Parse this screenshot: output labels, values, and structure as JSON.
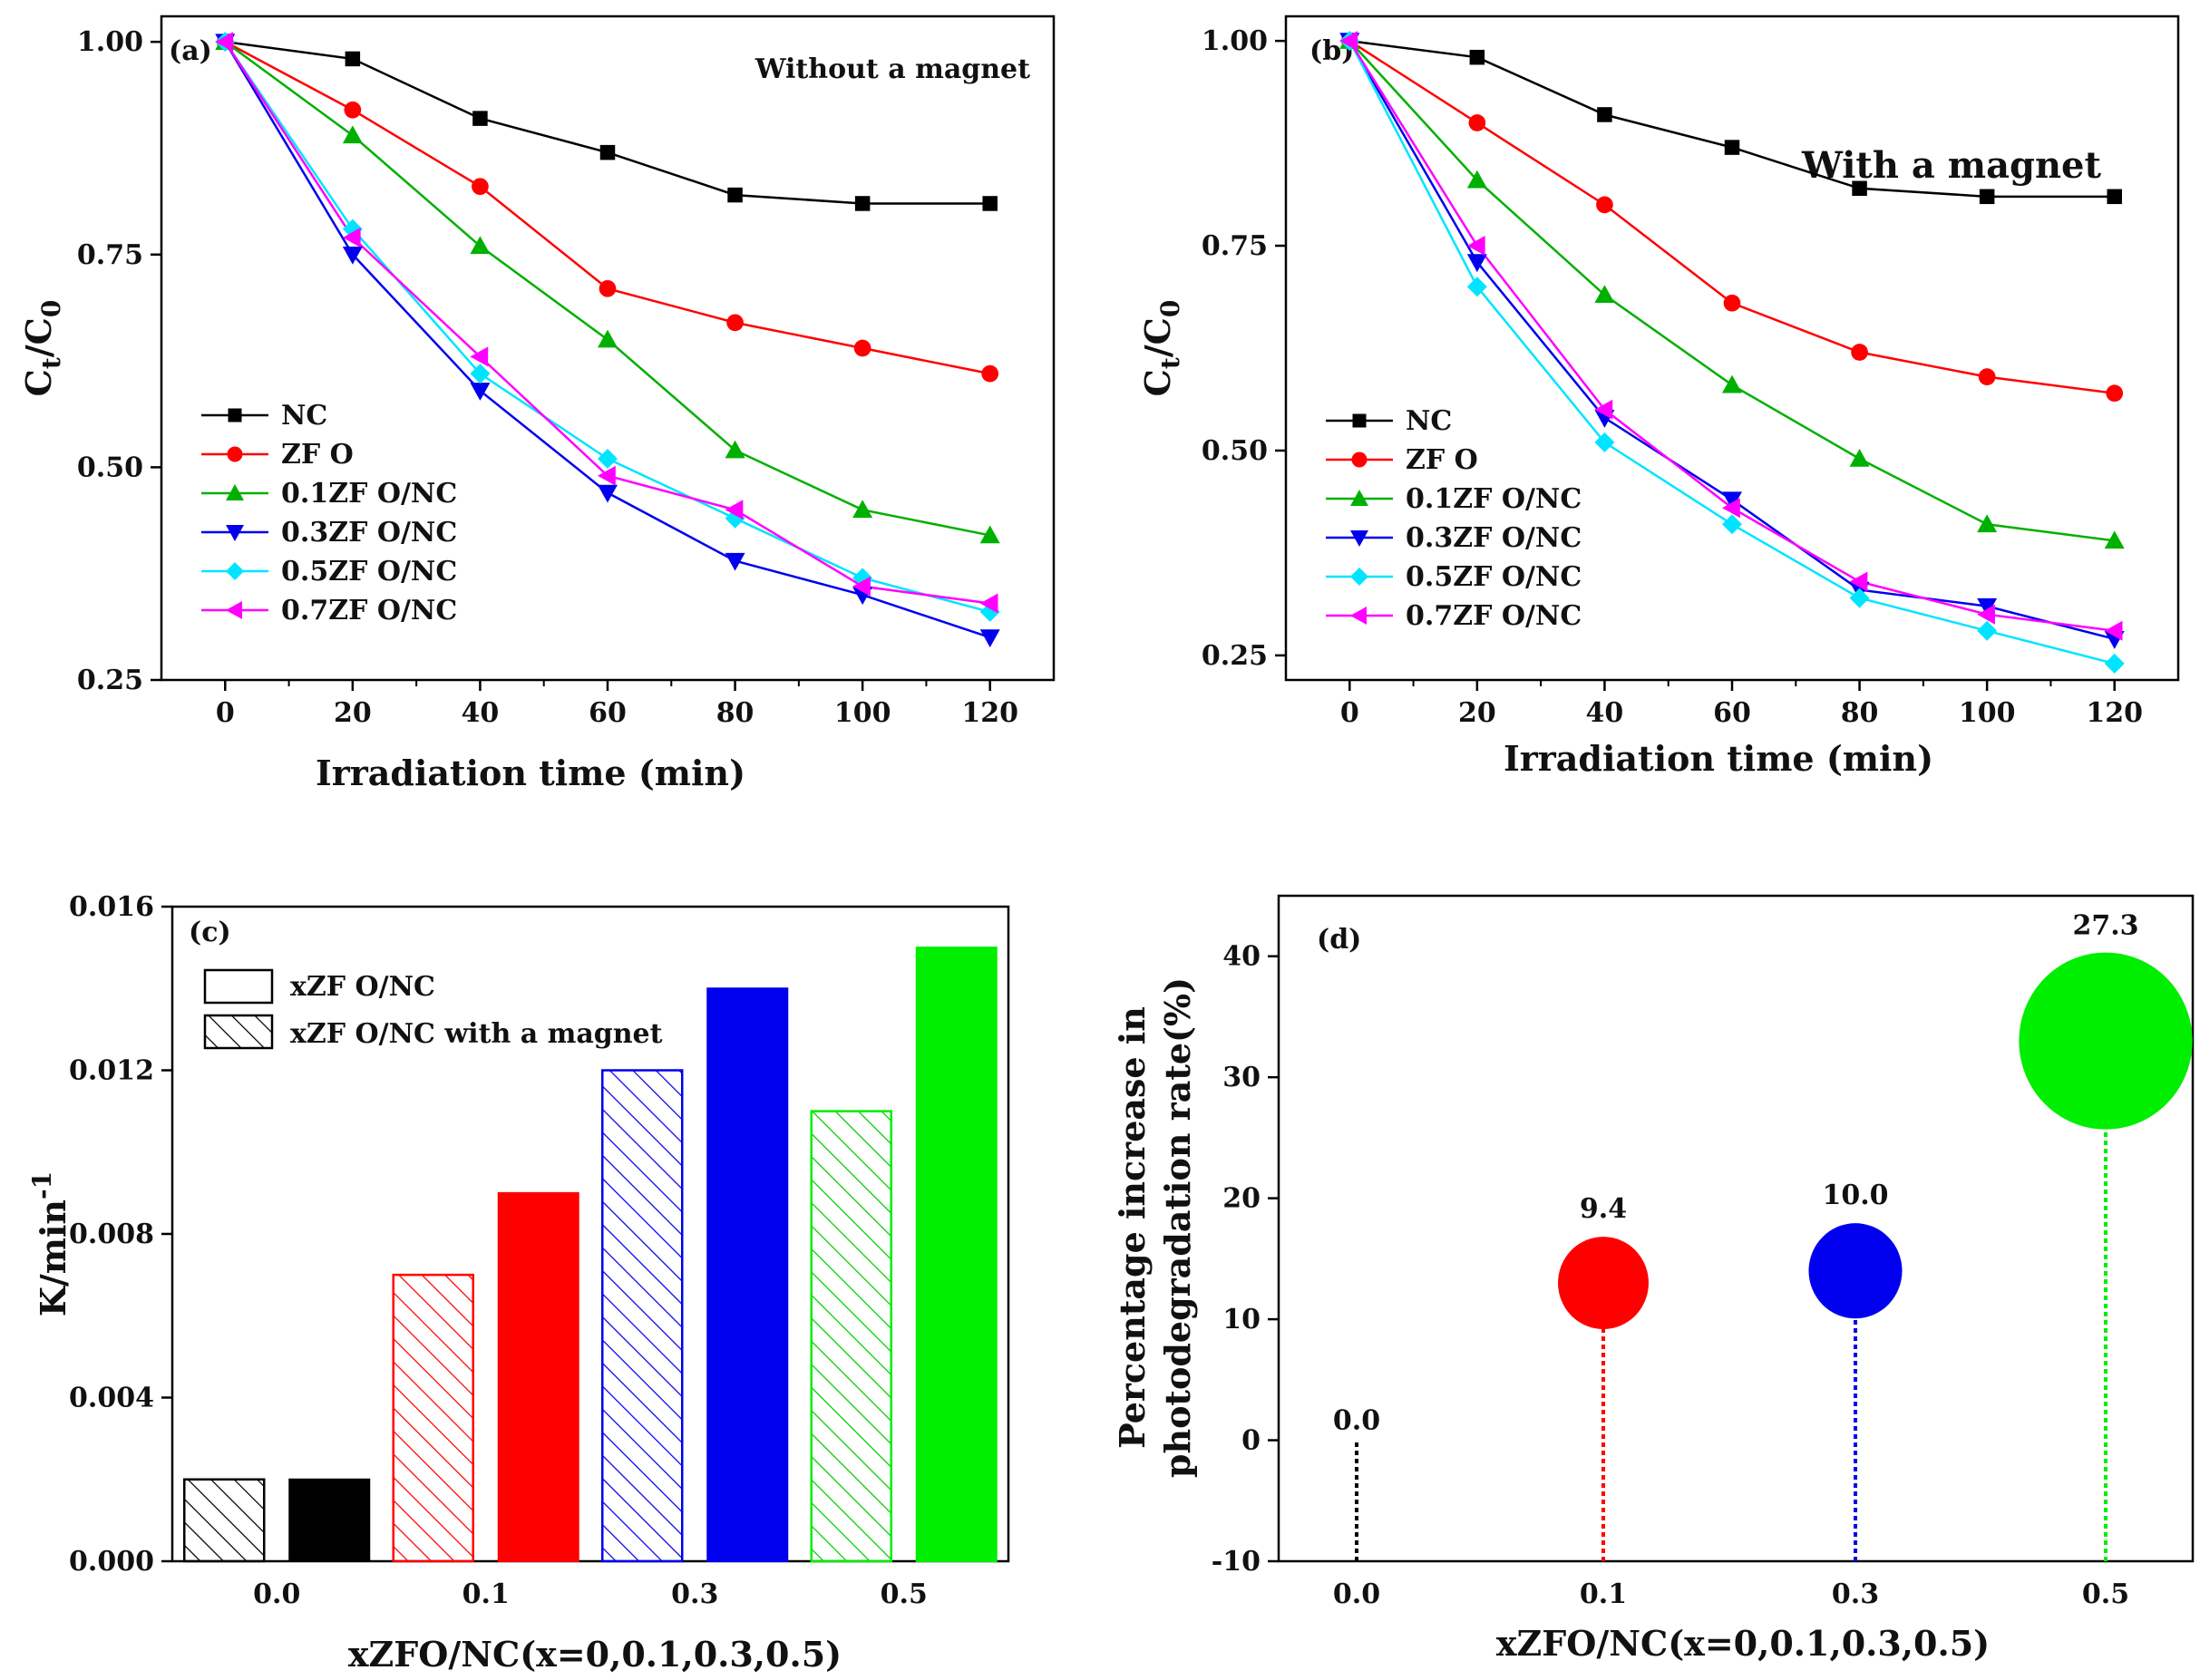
{
  "chart_data": [
    {
      "id": "a",
      "type": "line",
      "panel_label": "(a)",
      "annotation": "Without a magnet",
      "xlabel": "Irradiation time (min)",
      "ylabel_main": "C",
      "ylabel_sub1": "t",
      "ylabel_mid": "/C",
      "ylabel_sub2": "0",
      "x": [
        0,
        20,
        40,
        60,
        80,
        100,
        120
      ],
      "xticks": [
        "0",
        "20",
        "40",
        "60",
        "80",
        "100",
        "120"
      ],
      "yticks": [
        "0.25",
        "0.50",
        "0.75",
        "1.00"
      ],
      "ylim": [
        0.25,
        1.03
      ],
      "legend_position": "lower-left",
      "series": [
        {
          "name": "NC",
          "color": "#000000",
          "marker": "square",
          "values": [
            1.0,
            0.98,
            0.91,
            0.87,
            0.82,
            0.81,
            0.81
          ]
        },
        {
          "name": "ZF O",
          "color": "#ff0000",
          "marker": "circle",
          "values": [
            1.0,
            0.92,
            0.83,
            0.71,
            0.67,
            0.64,
            0.61
          ]
        },
        {
          "name": "0.1ZF O/NC",
          "color": "#00b000",
          "marker": "triangle-up",
          "values": [
            1.0,
            0.89,
            0.76,
            0.65,
            0.52,
            0.45,
            0.42
          ]
        },
        {
          "name": "0.3ZF O/NC",
          "color": "#0000ee",
          "marker": "triangle-down",
          "values": [
            1.0,
            0.75,
            0.59,
            0.47,
            0.39,
            0.35,
            0.3
          ]
        },
        {
          "name": "0.5ZF O/NC",
          "color": "#00e5ff",
          "marker": "diamond",
          "values": [
            1.0,
            0.78,
            0.61,
            0.51,
            0.44,
            0.37,
            0.33
          ]
        },
        {
          "name": "0.7ZF O/NC",
          "color": "#ff00ff",
          "marker": "triangle-left",
          "values": [
            1.0,
            0.77,
            0.63,
            0.49,
            0.45,
            0.36,
            0.34
          ]
        }
      ]
    },
    {
      "id": "b",
      "type": "line",
      "panel_label": "(b)",
      "annotation": "With a magnet",
      "xlabel": "Irradiation time (min)",
      "ylabel_main": "C",
      "ylabel_sub1": "t",
      "ylabel_mid": "/C",
      "ylabel_sub2": "0",
      "x": [
        0,
        20,
        40,
        60,
        80,
        100,
        120
      ],
      "xticks": [
        "0",
        "20",
        "40",
        "60",
        "80",
        "100",
        "120"
      ],
      "yticks": [
        "0.25",
        "0.50",
        "0.75",
        "1.00"
      ],
      "ylim": [
        0.22,
        1.03
      ],
      "legend_position": "lower-left",
      "series": [
        {
          "name": "NC",
          "color": "#000000",
          "marker": "square",
          "values": [
            1.0,
            0.98,
            0.91,
            0.87,
            0.82,
            0.81,
            0.81
          ]
        },
        {
          "name": "ZF O",
          "color": "#ff0000",
          "marker": "circle",
          "values": [
            1.0,
            0.9,
            0.8,
            0.68,
            0.62,
            0.59,
            0.57
          ]
        },
        {
          "name": "0.1ZF O/NC",
          "color": "#00b000",
          "marker": "triangle-up",
          "values": [
            1.0,
            0.83,
            0.69,
            0.58,
            0.49,
            0.41,
            0.39
          ]
        },
        {
          "name": "0.3ZF O/NC",
          "color": "#0000ee",
          "marker": "triangle-down",
          "values": [
            1.0,
            0.73,
            0.54,
            0.44,
            0.33,
            0.31,
            0.27
          ]
        },
        {
          "name": "0.5ZF O/NC",
          "color": "#00e5ff",
          "marker": "diamond",
          "values": [
            1.0,
            0.7,
            0.51,
            0.41,
            0.32,
            0.28,
            0.24
          ]
        },
        {
          "name": "0.7ZF O/NC",
          "color": "#ff00ff",
          "marker": "triangle-left",
          "values": [
            1.0,
            0.75,
            0.55,
            0.43,
            0.34,
            0.3,
            0.28
          ]
        }
      ]
    },
    {
      "id": "c",
      "type": "bar",
      "panel_label": "(c)",
      "xlabel": "xZFO/NC(x=0,0.1,0.3,0.5)",
      "ylabel_main": "K/min",
      "ylabel_sup": "-1",
      "categories": [
        "0.0",
        "0.1",
        "0.3",
        "0.5"
      ],
      "yticks": [
        "0.000",
        "0.004",
        "0.008",
        "0.012",
        "0.016"
      ],
      "ylim": [
        0,
        0.016
      ],
      "legend_position": "top-left",
      "colors": [
        "#000000",
        "#ff0000",
        "#0000ee",
        "#00ee00"
      ],
      "series": [
        {
          "name": "xZF O/NC with a magnet",
          "style": "hatched",
          "values": [
            0.002,
            0.007,
            0.012,
            0.011
          ]
        },
        {
          "name": "xZF O/NC",
          "style": "solid",
          "values": [
            0.002,
            0.009,
            0.014,
            0.015
          ]
        }
      ],
      "legend": [
        "xZF O/NC",
        "xZF O/NC with a magnet"
      ]
    },
    {
      "id": "d",
      "type": "scatter",
      "panel_label": "(d)",
      "xlabel": "xZFO/NC(x=0,0.1,0.3,0.5)",
      "ylabel_line1": "Percentage increase in",
      "ylabel_line2": "photodegradation rate(%)",
      "categories": [
        "0.0",
        "0.1",
        "0.3",
        "0.5"
      ],
      "values": [
        0.0,
        9.4,
        10.0,
        27.3
      ],
      "bubble_y": [
        0,
        13,
        14,
        33
      ],
      "value_labels": [
        "0.0",
        "9.4",
        "10.0",
        "27.3"
      ],
      "colors": [
        "#000000",
        "#ff0000",
        "#0000ee",
        "#00ee00"
      ],
      "yticks": [
        "-10",
        "0",
        "10",
        "20",
        "30",
        "40"
      ],
      "ylim": [
        -10,
        45
      ]
    }
  ]
}
